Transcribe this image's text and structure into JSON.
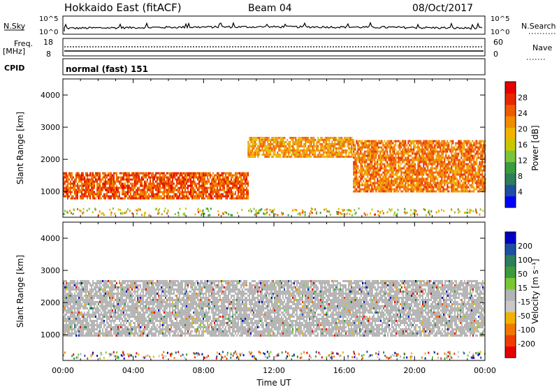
{
  "header": {
    "title": "Hokkaido East (fitACF)",
    "beam": "Beam 04",
    "date": "08/Oct/2017"
  },
  "summary": {
    "nsky_label": "N.Sky",
    "nsky_ticks": [
      "10^5",
      "10^0"
    ],
    "nsearch_label": "N.Search",
    "nsearch_ticks": [
      "10^5",
      "10^0"
    ],
    "freq_label": "Freq.",
    "freq_unit": "[MHz]",
    "freq_ticks": [
      "18",
      "8"
    ],
    "nave_label": "Nave",
    "nave_ticks": [
      "60",
      "0"
    ],
    "cpid_label": "CPID",
    "cpid_value": "normal (fast) 151"
  },
  "colors": {
    "power_scale": [
      "#0000ff",
      "#1f4fa0",
      "#2e7d5b",
      "#3c9b3c",
      "#7cc43c",
      "#c8c800",
      "#f0b400",
      "#f08c00",
      "#f05a00",
      "#e62800",
      "#e60000"
    ],
    "velocity_scale": [
      "#e60000",
      "#f03c00",
      "#f07800",
      "#f0b400",
      "#c8c8c8",
      "#b4b4b4",
      "#78c832",
      "#3c9b3c",
      "#2e7d5b",
      "#1f4fa0",
      "#0000c8"
    ],
    "ground_scatter": "#b4b4b4"
  },
  "chart_data": [
    {
      "type": "heatmap",
      "panel": "power",
      "ylabel": "Slant Range [km]",
      "yticks": [
        "1000",
        "2000",
        "3000",
        "4000"
      ],
      "ylim": [
        200,
        4500
      ],
      "xlim": [
        0,
        24
      ],
      "colorbar_label": "Power [dB]",
      "colorbar_ticks": [
        "4",
        "8",
        "12",
        "16",
        "20",
        "24",
        "28"
      ],
      "features": [
        {
          "t": [
            0,
            10.5
          ],
          "r": [
            800,
            1600
          ],
          "level_db": 26
        },
        {
          "t": [
            10.5,
            16.5
          ],
          "r": [
            2100,
            2700
          ],
          "level_db": 22
        },
        {
          "t": [
            16.5,
            24
          ],
          "r": [
            1000,
            2600
          ],
          "level_db": 24
        }
      ]
    },
    {
      "type": "heatmap",
      "panel": "velocity",
      "ylabel": "Slant Range [km]",
      "yticks": [
        "1000",
        "2000",
        "3000",
        "4000"
      ],
      "ylim": [
        200,
        4500
      ],
      "xlim": [
        0,
        24
      ],
      "xticks": [
        "00:00",
        "04:00",
        "08:00",
        "12:00",
        "16:00",
        "20:00",
        "00:00"
      ],
      "xlabel": "Time UT",
      "colorbar_label": "Velocity [m s⁻¹]",
      "colorbar_ticks": [
        "200",
        "100",
        "50",
        "15",
        "-15",
        "-50",
        "-100",
        "-200"
      ],
      "features": [
        {
          "t": [
            0,
            24
          ],
          "r": [
            1000,
            2700
          ],
          "velocity": "ground scatter"
        }
      ]
    }
  ]
}
